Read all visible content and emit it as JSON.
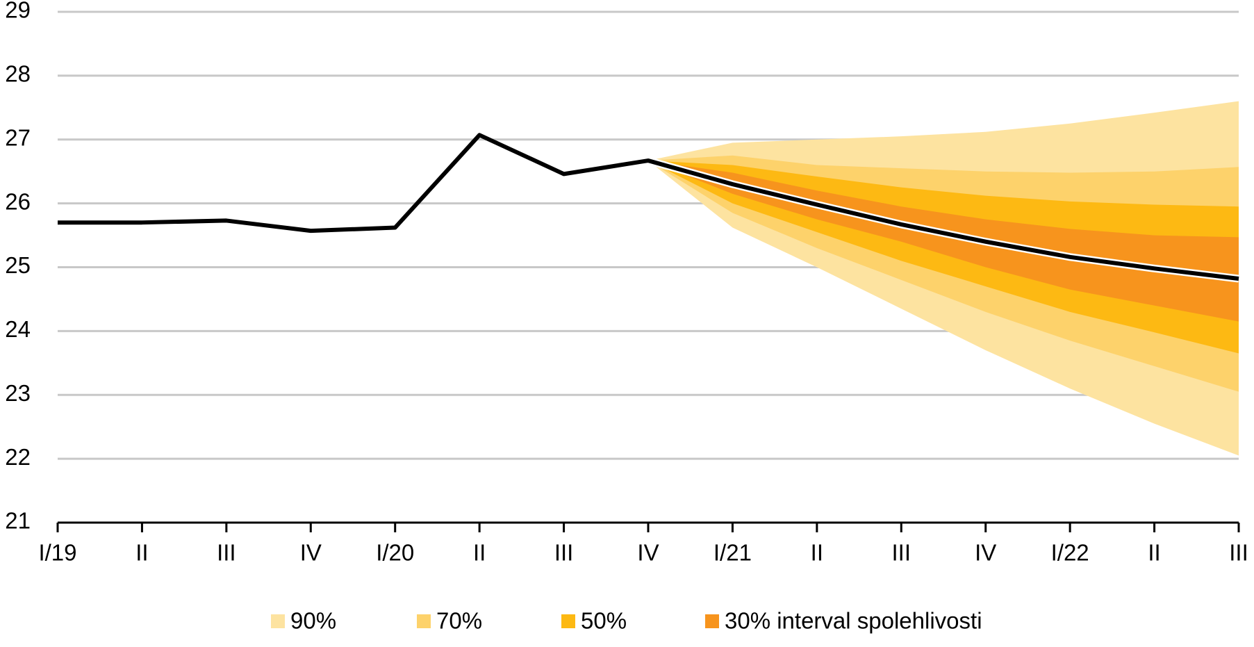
{
  "chart_data": {
    "type": "fan",
    "categories": [
      "I/19",
      "II",
      "III",
      "IV",
      "I/20",
      "II",
      "III",
      "IV",
      "I/21",
      "II",
      "III",
      "IV",
      "I/22",
      "II",
      "III"
    ],
    "line": {
      "color": "#000000",
      "values": [
        25.7,
        25.7,
        25.73,
        25.57,
        25.62,
        27.07,
        26.46,
        26.67,
        26.3,
        25.98,
        25.67,
        25.4,
        25.16,
        24.98,
        24.82
      ]
    },
    "series": [
      {
        "name": "90%",
        "color": "#fde3a0",
        "lower": [
          null,
          null,
          null,
          null,
          null,
          null,
          null,
          26.67,
          25.62,
          25.0,
          24.35,
          23.7,
          23.1,
          22.55,
          22.05
        ],
        "upper": [
          null,
          null,
          null,
          null,
          null,
          null,
          null,
          26.67,
          26.95,
          27.0,
          27.05,
          27.12,
          27.25,
          27.42,
          27.6
        ]
      },
      {
        "name": "70%",
        "color": "#fdd26b",
        "lower": [
          null,
          null,
          null,
          null,
          null,
          null,
          null,
          26.67,
          25.85,
          25.3,
          24.8,
          24.3,
          23.85,
          23.45,
          23.05
        ],
        "upper": [
          null,
          null,
          null,
          null,
          null,
          null,
          null,
          26.67,
          26.75,
          26.6,
          26.55,
          26.5,
          26.48,
          26.5,
          26.57
        ]
      },
      {
        "name": "50%",
        "color": "#fdb913",
        "lower": [
          null,
          null,
          null,
          null,
          null,
          null,
          null,
          26.67,
          26.0,
          25.55,
          25.1,
          24.7,
          24.3,
          23.98,
          23.65
        ],
        "upper": [
          null,
          null,
          null,
          null,
          null,
          null,
          null,
          26.67,
          26.6,
          26.42,
          26.25,
          26.12,
          26.03,
          25.98,
          25.95
        ]
      },
      {
        "name": "30% interval spolehlivosti",
        "color": "#f7941d",
        "lower": [
          null,
          null,
          null,
          null,
          null,
          null,
          null,
          26.67,
          26.15,
          25.75,
          25.4,
          25.0,
          24.65,
          24.4,
          24.15
        ],
        "upper": [
          null,
          null,
          null,
          null,
          null,
          null,
          null,
          26.67,
          26.48,
          26.2,
          25.95,
          25.75,
          25.6,
          25.5,
          25.47
        ]
      }
    ],
    "ylim": [
      21,
      29
    ],
    "yticks": [
      21,
      22,
      23,
      24,
      25,
      26,
      27,
      28,
      29
    ],
    "grid": true
  }
}
